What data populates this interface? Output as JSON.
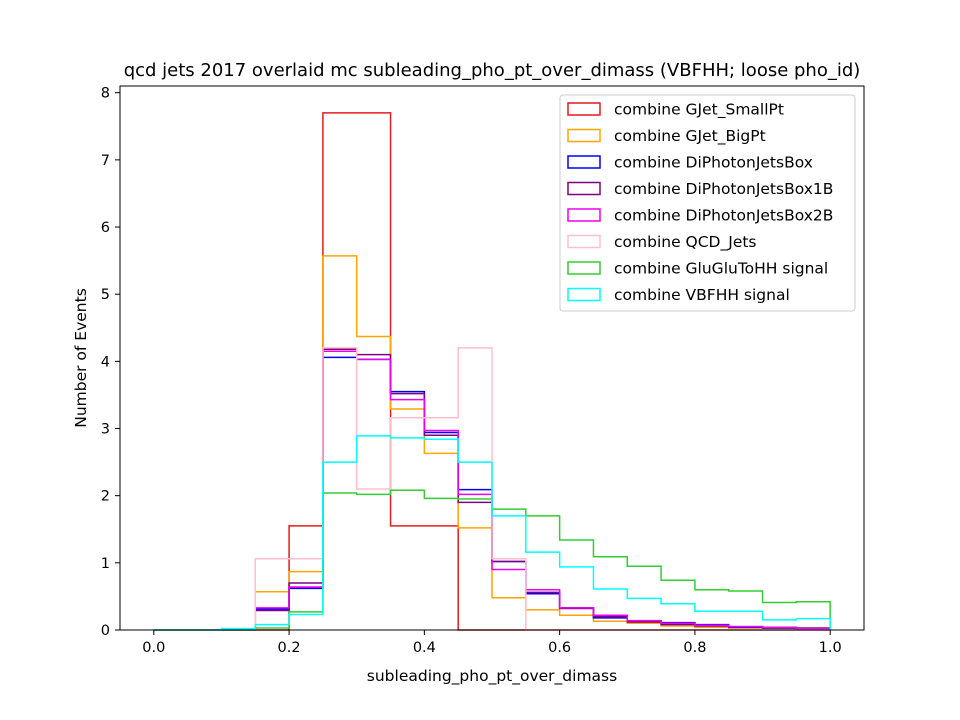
{
  "chart_data": {
    "type": "histogram-step",
    "title": "qcd jets 2017 overlaid mc subleading_pho_pt_over_dimass (VBFHH; loose pho_id)",
    "xlabel": "subleading_pho_pt_over_dimass",
    "ylabel": "Number of Events",
    "xlim": [
      -0.05,
      1.05
    ],
    "ylim": [
      0,
      8.1
    ],
    "x_ticks": [
      0.0,
      0.2,
      0.4,
      0.6,
      0.8,
      1.0
    ],
    "x_tick_labels": [
      "0.0",
      "0.2",
      "0.4",
      "0.6",
      "0.8",
      "1.0"
    ],
    "y_ticks": [
      0,
      1,
      2,
      3,
      4,
      5,
      6,
      7,
      8
    ],
    "y_tick_labels": [
      "0",
      "1",
      "2",
      "3",
      "4",
      "5",
      "6",
      "7",
      "8"
    ],
    "legend_position": "top-right",
    "grid": false,
    "bin_edges": [
      0.0,
      0.05,
      0.1,
      0.15,
      0.2,
      0.25,
      0.3,
      0.35,
      0.4,
      0.45,
      0.5,
      0.55,
      0.6,
      0.65,
      0.7,
      0.75,
      0.8,
      0.85,
      0.9,
      0.95,
      1.0
    ],
    "series": [
      {
        "name": "combine GJet_SmallPt",
        "color": "#e41a1c",
        "values": [
          0,
          0,
          0,
          0,
          1.55,
          7.7,
          7.7,
          1.55,
          1.55,
          0,
          0,
          0,
          0,
          0,
          0,
          0,
          0,
          0,
          0,
          0
        ]
      },
      {
        "name": "combine GJet_BigPt",
        "color": "#ffa500",
        "values": [
          0,
          0,
          0,
          0.57,
          0.87,
          5.57,
          4.37,
          3.29,
          2.63,
          1.52,
          0.48,
          0.3,
          0.22,
          0.13,
          0.1,
          0.06,
          0.04,
          0.03,
          0.02,
          0.01
        ]
      },
      {
        "name": "combine DiPhotonJetsBox",
        "color": "#0000ff",
        "values": [
          0,
          0,
          0,
          0.31,
          0.62,
          4.06,
          4.03,
          3.55,
          2.94,
          2.09,
          1.02,
          0.54,
          0.33,
          0.18,
          0.13,
          0.11,
          0.08,
          0.04,
          0.03,
          0.02
        ]
      },
      {
        "name": "combine DiPhotonJetsBox1B",
        "color": "#800080",
        "values": [
          0,
          0,
          0,
          0.29,
          0.7,
          4.18,
          4.1,
          3.52,
          2.9,
          1.9,
          1.02,
          0.56,
          0.32,
          0.2,
          0.12,
          0.08,
          0.06,
          0.05,
          0.04,
          0.03
        ]
      },
      {
        "name": "combine DiPhotonJetsBox2B",
        "color": "#ee00ee",
        "values": [
          0,
          0,
          0,
          0.33,
          0.64,
          4.15,
          4.03,
          3.43,
          2.97,
          2.02,
          0.9,
          0.6,
          0.33,
          0.22,
          0.14,
          0.1,
          0.07,
          0.05,
          0.04,
          0.02
        ]
      },
      {
        "name": "combine QCD_Jets",
        "color": "#ffc0cb",
        "values": [
          0,
          0,
          0,
          1.06,
          1.06,
          4.2,
          2.1,
          3.16,
          3.16,
          4.2,
          1.06,
          0,
          0,
          0,
          0,
          0,
          0,
          0,
          0,
          0
        ]
      },
      {
        "name": "combine GluGluToHH signal",
        "color": "#32cd32",
        "values": [
          0,
          0,
          0,
          0.03,
          0.27,
          2.04,
          2.02,
          2.08,
          1.96,
          1.95,
          1.8,
          1.7,
          1.34,
          1.09,
          0.95,
          0.74,
          0.6,
          0.58,
          0.41,
          0.42
        ]
      },
      {
        "name": "combine VBFHH signal",
        "color": "#00ffff",
        "values": [
          0,
          0,
          0.02,
          0.08,
          0.23,
          2.5,
          2.89,
          2.86,
          2.84,
          2.5,
          1.7,
          1.16,
          0.94,
          0.61,
          0.47,
          0.39,
          0.28,
          0.28,
          0.15,
          0.17
        ]
      }
    ]
  }
}
